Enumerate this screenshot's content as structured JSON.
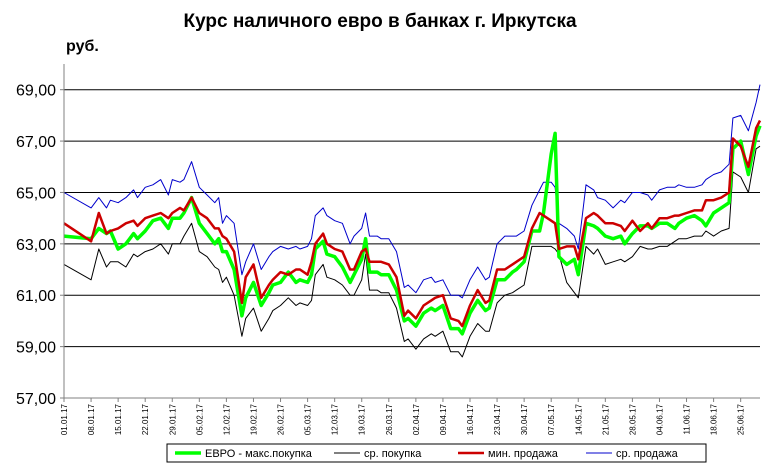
{
  "chart_data": {
    "type": "line",
    "title": "Курс наличного евро в банках г. Иркутска",
    "ylabel": "руб.",
    "xlabel": "",
    "ylim": [
      57,
      70
    ],
    "y_ticks": [
      "57,00",
      "59,00",
      "61,00",
      "63,00",
      "65,00",
      "67,00",
      "69,00"
    ],
    "y_tick_values": [
      57,
      59,
      61,
      63,
      65,
      67,
      69
    ],
    "grid": "horizontal",
    "legend_position": "bottom",
    "x_ticks": [
      "01.01.17",
      "08.01.17",
      "15.01.17",
      "22.01.17",
      "29.01.17",
      "05.02.17",
      "12.02.17",
      "19.02.17",
      "26.02.17",
      "05.03.17",
      "12.03.17",
      "19.03.17",
      "26.03.17",
      "02.04.17",
      "09.04.17",
      "16.04.17",
      "23.04.17",
      "30.04.17",
      "07.05.17",
      "14.05.17",
      "21.05.17",
      "28.05.17",
      "04.06.17",
      "11.06.17",
      "18.06.17",
      "25.06.17"
    ],
    "x_tick_days": [
      0,
      7,
      14,
      21,
      28,
      35,
      42,
      49,
      56,
      63,
      70,
      77,
      84,
      91,
      98,
      105,
      112,
      119,
      126,
      133,
      140,
      147,
      154,
      161,
      168,
      175
    ],
    "x": [
      0,
      7,
      9,
      11,
      12,
      14,
      16,
      18,
      19,
      21,
      23,
      25,
      27,
      28,
      30,
      31,
      33,
      35,
      37,
      39,
      40,
      41,
      42,
      44,
      46,
      47,
      49,
      51,
      53,
      54,
      56,
      58,
      60,
      61,
      63,
      64,
      65,
      67,
      68,
      70,
      72,
      74,
      75,
      77,
      78,
      79,
      81,
      82,
      84,
      86,
      88,
      89,
      91,
      93,
      95,
      96,
      98,
      100,
      102,
      103,
      105,
      107,
      109,
      110,
      112,
      114,
      116,
      117,
      119,
      121,
      123,
      124,
      126,
      127,
      128,
      130,
      132,
      133,
      135,
      137,
      138,
      140,
      142,
      144,
      145,
      147,
      149,
      151,
      152,
      154,
      156,
      158,
      159,
      161,
      163,
      165,
      166,
      168,
      170,
      172,
      173,
      175,
      177,
      179,
      180
    ],
    "series": [
      {
        "name": "ЕВРО - макс.покупка",
        "color": "#00ff00",
        "values": [
          63.3,
          63.2,
          63.6,
          63.4,
          63.5,
          62.8,
          63.0,
          63.4,
          63.2,
          63.5,
          63.9,
          64.0,
          63.6,
          64.0,
          64.0,
          64.2,
          64.8,
          63.8,
          63.4,
          63.0,
          63.2,
          62.7,
          62.7,
          62.0,
          60.2,
          60.9,
          61.5,
          60.6,
          61.1,
          61.4,
          61.5,
          61.9,
          61.5,
          61.6,
          61.5,
          61.8,
          62.8,
          63.1,
          62.6,
          62.5,
          62.1,
          61.5,
          61.8,
          62.4,
          63.2,
          61.9,
          61.9,
          61.8,
          61.8,
          61.2,
          60.0,
          60.1,
          59.8,
          60.3,
          60.5,
          60.4,
          60.6,
          59.7,
          59.7,
          59.5,
          60.3,
          60.8,
          60.4,
          60.5,
          61.6,
          61.6,
          61.9,
          62.0,
          62.3,
          63.5,
          63.5,
          64.2,
          66.5,
          67.3,
          62.5,
          62.2,
          62.4,
          61.8,
          63.8,
          63.7,
          63.6,
          63.3,
          63.2,
          63.3,
          63.0,
          63.4,
          63.7,
          63.7,
          63.6,
          63.8,
          63.8,
          63.6,
          63.8,
          64.0,
          64.1,
          63.9,
          63.7,
          64.2,
          64.4,
          64.6,
          66.7,
          67.0,
          65.7,
          67.2,
          67.6
        ]
      },
      {
        "name": "ср. покупка",
        "color": "#000000",
        "values": [
          62.2,
          61.6,
          62.8,
          62.1,
          62.3,
          62.3,
          62.1,
          62.6,
          62.5,
          62.7,
          62.8,
          63.0,
          62.6,
          63.0,
          63.0,
          63.3,
          63.8,
          62.7,
          62.5,
          62.1,
          62.0,
          61.5,
          61.7,
          61.0,
          59.4,
          60.1,
          60.5,
          59.6,
          60.1,
          60.4,
          60.6,
          60.9,
          60.6,
          60.7,
          60.6,
          60.8,
          61.8,
          62.2,
          61.7,
          61.6,
          61.4,
          61.0,
          61.0,
          61.6,
          62.6,
          61.2,
          61.2,
          61.1,
          61.1,
          60.5,
          59.2,
          59.3,
          58.9,
          59.3,
          59.5,
          59.4,
          59.6,
          58.8,
          58.8,
          58.6,
          59.4,
          59.9,
          59.6,
          59.6,
          60.7,
          61.0,
          61.1,
          61.2,
          61.4,
          62.9,
          62.9,
          62.9,
          62.9,
          62.8,
          62.6,
          61.5,
          61.1,
          60.9,
          62.9,
          62.6,
          62.8,
          62.2,
          62.3,
          62.4,
          62.3,
          62.5,
          62.9,
          62.8,
          62.8,
          62.9,
          62.9,
          63.1,
          63.2,
          63.2,
          63.3,
          63.3,
          63.5,
          63.3,
          63.5,
          63.6,
          65.8,
          65.6,
          65.0,
          66.7,
          66.8
        ]
      },
      {
        "name": "мин. продажа",
        "color": "#cc0000",
        "values": [
          63.8,
          63.1,
          64.2,
          63.4,
          63.5,
          63.6,
          63.8,
          63.9,
          63.7,
          64.0,
          64.1,
          64.2,
          64.0,
          64.2,
          64.4,
          64.3,
          64.8,
          64.2,
          64.0,
          63.6,
          63.6,
          63.3,
          63.2,
          62.7,
          60.7,
          61.7,
          62.2,
          60.9,
          61.4,
          61.6,
          61.9,
          61.8,
          62.0,
          62.0,
          61.8,
          62.3,
          63.0,
          63.4,
          63.0,
          62.8,
          62.7,
          62.0,
          62.0,
          62.7,
          62.8,
          62.3,
          62.3,
          62.3,
          62.2,
          61.7,
          60.2,
          60.4,
          60.1,
          60.6,
          60.8,
          60.9,
          61.0,
          60.1,
          60.0,
          59.8,
          60.6,
          61.2,
          60.7,
          60.8,
          62.0,
          62.0,
          62.2,
          62.3,
          62.5,
          63.6,
          64.2,
          64.1,
          63.9,
          63.8,
          62.8,
          62.9,
          62.9,
          62.4,
          64.0,
          64.2,
          64.1,
          63.8,
          63.8,
          63.7,
          63.5,
          63.9,
          63.5,
          63.8,
          63.6,
          64.0,
          64.0,
          64.1,
          64.1,
          64.2,
          64.3,
          64.3,
          64.7,
          64.7,
          64.8,
          65.0,
          67.1,
          66.8,
          66.0,
          67.5,
          67.8
        ]
      },
      {
        "name": "ср. продажа",
        "color": "#0000cc",
        "values": [
          65.0,
          64.4,
          64.8,
          64.4,
          64.7,
          64.6,
          64.8,
          65.1,
          64.8,
          65.2,
          65.3,
          65.5,
          64.9,
          65.5,
          65.4,
          65.5,
          66.2,
          65.2,
          64.9,
          64.6,
          64.8,
          63.8,
          64.1,
          63.8,
          61.8,
          62.3,
          63.0,
          62.0,
          62.5,
          62.7,
          62.9,
          62.8,
          62.9,
          62.8,
          62.9,
          63.2,
          64.1,
          64.4,
          64.1,
          63.9,
          63.8,
          63.0,
          63.3,
          63.6,
          64.2,
          63.3,
          63.3,
          63.2,
          63.2,
          62.7,
          61.3,
          61.4,
          61.1,
          61.6,
          61.7,
          61.5,
          61.6,
          61.0,
          61.0,
          60.9,
          61.6,
          62.1,
          61.6,
          61.7,
          63.0,
          63.3,
          63.3,
          63.3,
          63.5,
          64.5,
          65.1,
          65.4,
          65.4,
          65.2,
          63.8,
          63.6,
          63.3,
          62.8,
          65.3,
          65.1,
          64.8,
          64.7,
          64.4,
          64.7,
          64.6,
          65.0,
          65.0,
          64.9,
          64.7,
          65.1,
          65.2,
          65.2,
          65.3,
          65.2,
          65.2,
          65.3,
          65.5,
          65.7,
          65.8,
          66.1,
          67.9,
          68.0,
          67.4,
          68.5,
          69.2
        ]
      }
    ]
  }
}
